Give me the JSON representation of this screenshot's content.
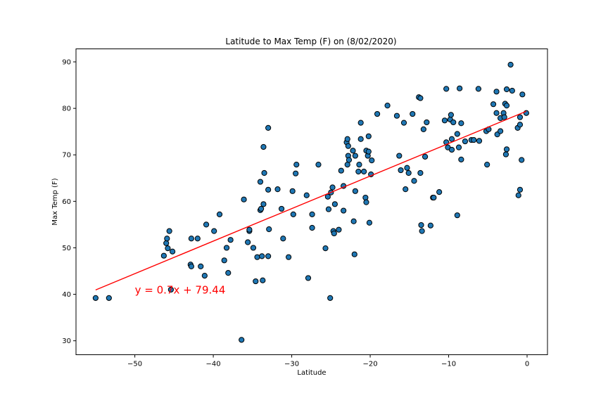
{
  "chart_data": {
    "type": "scatter",
    "title": "Latitude to Max Temp (F) on (8/02/2020)",
    "xlabel": "Latitude",
    "ylabel": "Max Temp (F)",
    "xlim": [
      -57.5,
      2.6
    ],
    "ylim": [
      27.0,
      92.8
    ],
    "xticks": [
      -50,
      -40,
      -30,
      -20,
      -10,
      0
    ],
    "xtick_labels": [
      "−50",
      "−40",
      "−30",
      "−20",
      "−10",
      "0"
    ],
    "yticks": [
      30,
      40,
      50,
      60,
      70,
      80,
      90
    ],
    "ytick_labels": [
      "30",
      "40",
      "50",
      "60",
      "70",
      "80",
      "90"
    ],
    "grid": false,
    "marker_color": "#1f77b4",
    "marker_edge_color": "#000000",
    "line_color": "#ff0000",
    "annotation": {
      "text": "y = 0.7x + 79.44",
      "x": -50,
      "y": 40,
      "color": "#ff0000"
    },
    "regression": {
      "slope": 0.7,
      "intercept": 79.44,
      "x_range": [
        -55.0,
        -0.1
      ]
    },
    "points": [
      [
        -55.0,
        39.2
      ],
      [
        -53.3,
        39.2
      ],
      [
        -46.3,
        48.3
      ],
      [
        -46.0,
        51.0
      ],
      [
        -45.9,
        52.0
      ],
      [
        -45.8,
        49.9
      ],
      [
        -45.6,
        53.6
      ],
      [
        -45.4,
        41.0
      ],
      [
        -45.2,
        49.2
      ],
      [
        -42.9,
        46.4
      ],
      [
        -42.8,
        46.0
      ],
      [
        -42.8,
        52.0
      ],
      [
        -42.0,
        52.0
      ],
      [
        -41.6,
        46.0
      ],
      [
        -41.1,
        44.0
      ],
      [
        -40.9,
        55.0
      ],
      [
        -39.9,
        53.6
      ],
      [
        -39.2,
        57.2
      ],
      [
        -38.6,
        47.3
      ],
      [
        -38.3,
        50.0
      ],
      [
        -38.1,
        44.6
      ],
      [
        -37.8,
        51.7
      ],
      [
        -36.4,
        30.2
      ],
      [
        -36.1,
        60.4
      ],
      [
        -35.6,
        51.2
      ],
      [
        -35.4,
        53.6
      ],
      [
        -35.4,
        53.9
      ],
      [
        -34.9,
        50.0
      ],
      [
        -34.6,
        42.8
      ],
      [
        -34.4,
        48.0
      ],
      [
        -34.0,
        64.2
      ],
      [
        -34.0,
        58.1
      ],
      [
        -33.9,
        58.4
      ],
      [
        -33.8,
        48.2
      ],
      [
        -33.7,
        43.0
      ],
      [
        -33.6,
        59.4
      ],
      [
        -33.6,
        71.7
      ],
      [
        -33.5,
        66.1
      ],
      [
        -33.0,
        75.8
      ],
      [
        -33.0,
        48.2
      ],
      [
        -32.9,
        54.0
      ],
      [
        -33.0,
        62.5
      ],
      [
        -31.8,
        62.6
      ],
      [
        -31.3,
        58.4
      ],
      [
        -31.1,
        52.0
      ],
      [
        -30.4,
        48.0
      ],
      [
        -29.9,
        62.2
      ],
      [
        -29.8,
        57.2
      ],
      [
        -29.5,
        66.0
      ],
      [
        -29.4,
        67.9
      ],
      [
        -28.1,
        61.3
      ],
      [
        -27.9,
        43.5
      ],
      [
        -27.4,
        57.2
      ],
      [
        -27.4,
        54.3
      ],
      [
        -26.6,
        67.9
      ],
      [
        -25.7,
        49.9
      ],
      [
        -25.4,
        61.0
      ],
      [
        -25.3,
        58.3
      ],
      [
        -25.1,
        39.2
      ],
      [
        -25.0,
        61.9
      ],
      [
        -24.8,
        63.0
      ],
      [
        -24.7,
        53.6
      ],
      [
        -24.6,
        53.1
      ],
      [
        -24.5,
        59.4
      ],
      [
        -24.0,
        53.9
      ],
      [
        -23.7,
        66.6
      ],
      [
        -23.4,
        63.3
      ],
      [
        -23.4,
        58.0
      ],
      [
        -23.0,
        72.7
      ],
      [
        -22.9,
        67.9
      ],
      [
        -22.9,
        73.4
      ],
      [
        -22.8,
        69.8
      ],
      [
        -22.7,
        68.9
      ],
      [
        -22.8,
        71.9
      ],
      [
        -22.2,
        70.9
      ],
      [
        -22.1,
        55.7
      ],
      [
        -21.9,
        62.2
      ],
      [
        -22.0,
        48.6
      ],
      [
        -21.9,
        69.8
      ],
      [
        -21.5,
        66.4
      ],
      [
        -21.4,
        67.9
      ],
      [
        -21.2,
        73.4
      ],
      [
        -21.2,
        76.9
      ],
      [
        -20.8,
        66.4
      ],
      [
        -20.6,
        60.8
      ],
      [
        -20.5,
        70.9
      ],
      [
        -20.5,
        59.8
      ],
      [
        -20.3,
        69.8
      ],
      [
        -20.2,
        70.7
      ],
      [
        -20.2,
        74.0
      ],
      [
        -20.1,
        55.4
      ],
      [
        -19.9,
        65.8
      ],
      [
        -19.8,
        68.8
      ],
      [
        -19.1,
        78.8
      ],
      [
        -17.8,
        80.6
      ],
      [
        -16.6,
        78.4
      ],
      [
        -16.3,
        69.8
      ],
      [
        -16.1,
        66.7
      ],
      [
        -15.7,
        76.9
      ],
      [
        -15.5,
        62.6
      ],
      [
        -15.3,
        67.2
      ],
      [
        -15.1,
        66.1
      ],
      [
        -14.6,
        78.8
      ],
      [
        -14.4,
        64.4
      ],
      [
        -13.8,
        82.4
      ],
      [
        -13.6,
        82.2
      ],
      [
        -13.6,
        66.1
      ],
      [
        -13.5,
        54.9
      ],
      [
        -13.4,
        53.6
      ],
      [
        -13.2,
        75.5
      ],
      [
        -13.0,
        69.6
      ],
      [
        -12.8,
        77.0
      ],
      [
        -12.3,
        54.8
      ],
      [
        -12.0,
        60.8
      ],
      [
        -11.9,
        60.8
      ],
      [
        -11.2,
        62.0
      ],
      [
        -10.5,
        77.4
      ],
      [
        -10.3,
        84.2
      ],
      [
        -10.3,
        72.7
      ],
      [
        -10.1,
        71.6
      ],
      [
        -9.8,
        77.6
      ],
      [
        -9.7,
        78.6
      ],
      [
        -9.6,
        73.4
      ],
      [
        -9.6,
        71.1
      ],
      [
        -9.4,
        77.0
      ],
      [
        -8.9,
        74.5
      ],
      [
        -8.9,
        57.0
      ],
      [
        -8.7,
        71.6
      ],
      [
        -8.6,
        84.3
      ],
      [
        -8.4,
        76.8
      ],
      [
        -8.4,
        69.0
      ],
      [
        -7.9,
        72.9
      ],
      [
        -7.1,
        73.2
      ],
      [
        -6.8,
        73.2
      ],
      [
        -6.2,
        84.2
      ],
      [
        -6.1,
        73.0
      ],
      [
        -5.2,
        75.1
      ],
      [
        -5.1,
        67.9
      ],
      [
        -4.9,
        75.5
      ],
      [
        -4.3,
        80.9
      ],
      [
        -3.9,
        83.6
      ],
      [
        -3.9,
        79.0
      ],
      [
        -3.8,
        74.4
      ],
      [
        -3.4,
        77.9
      ],
      [
        -3.4,
        75.1
      ],
      [
        -3.0,
        79.0
      ],
      [
        -2.9,
        78.1
      ],
      [
        -2.8,
        81.0
      ],
      [
        -2.6,
        80.6
      ],
      [
        -2.6,
        84.1
      ],
      [
        -2.6,
        71.2
      ],
      [
        -2.7,
        70.1
      ],
      [
        -2.1,
        89.4
      ],
      [
        -1.9,
        83.8
      ],
      [
        -1.2,
        75.8
      ],
      [
        -1.1,
        61.3
      ],
      [
        -0.9,
        76.5
      ],
      [
        -0.9,
        78.1
      ],
      [
        -0.9,
        62.5
      ],
      [
        -0.7,
        68.9
      ],
      [
        -0.6,
        83.0
      ],
      [
        -0.1,
        79.0
      ]
    ]
  }
}
